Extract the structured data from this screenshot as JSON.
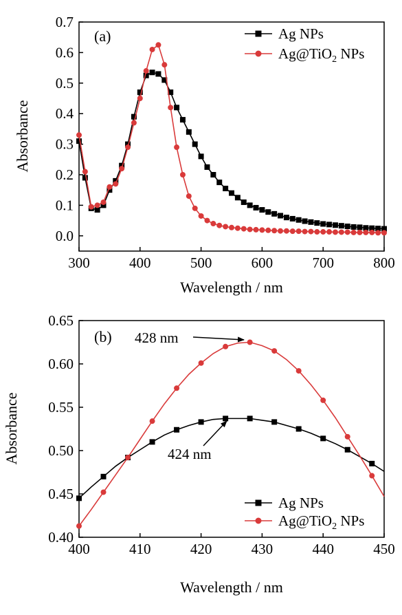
{
  "chart_data": [
    {
      "type": "line",
      "panel_label": "(a)",
      "xlabel": "Wavelength / nm",
      "ylabel": "Absorbance",
      "xlim": [
        300,
        800
      ],
      "ylim": [
        -0.05,
        0.7
      ],
      "xticks": [
        300,
        400,
        500,
        600,
        700,
        800
      ],
      "yticks": [
        0.0,
        0.1,
        0.2,
        0.3,
        0.4,
        0.5,
        0.6,
        0.7
      ],
      "legend_position": "top-right",
      "series": [
        {
          "name": "Ag NPs",
          "color": "#000000",
          "marker": "square",
          "x": [
            300,
            310,
            320,
            330,
            340,
            350,
            360,
            370,
            380,
            390,
            400,
            410,
            420,
            430,
            440,
            450,
            460,
            470,
            480,
            490,
            500,
            510,
            520,
            530,
            540,
            550,
            560,
            570,
            580,
            590,
            600,
            610,
            620,
            630,
            640,
            650,
            660,
            670,
            680,
            690,
            700,
            710,
            720,
            730,
            740,
            750,
            760,
            770,
            780,
            790,
            800
          ],
          "y": [
            0.31,
            0.19,
            0.09,
            0.085,
            0.1,
            0.15,
            0.18,
            0.23,
            0.3,
            0.39,
            0.47,
            0.525,
            0.535,
            0.53,
            0.51,
            0.47,
            0.42,
            0.38,
            0.34,
            0.3,
            0.26,
            0.225,
            0.2,
            0.175,
            0.155,
            0.14,
            0.125,
            0.11,
            0.1,
            0.092,
            0.085,
            0.078,
            0.072,
            0.066,
            0.06,
            0.056,
            0.052,
            0.048,
            0.045,
            0.042,
            0.039,
            0.037,
            0.035,
            0.033,
            0.031,
            0.029,
            0.028,
            0.026,
            0.025,
            0.024,
            0.023
          ]
        },
        {
          "name": "Ag@TiO2 NPs",
          "color": "#d93a3a",
          "marker": "circle",
          "x": [
            300,
            310,
            320,
            330,
            340,
            350,
            360,
            370,
            380,
            390,
            400,
            410,
            420,
            430,
            440,
            450,
            460,
            470,
            480,
            490,
            500,
            510,
            520,
            530,
            540,
            550,
            560,
            570,
            580,
            590,
            600,
            610,
            620,
            630,
            640,
            650,
            660,
            670,
            680,
            690,
            700,
            710,
            720,
            730,
            740,
            750,
            760,
            770,
            780,
            790,
            800
          ],
          "y": [
            0.33,
            0.21,
            0.095,
            0.1,
            0.11,
            0.16,
            0.17,
            0.22,
            0.29,
            0.37,
            0.45,
            0.54,
            0.61,
            0.625,
            0.56,
            0.42,
            0.29,
            0.2,
            0.13,
            0.09,
            0.065,
            0.05,
            0.04,
            0.034,
            0.03,
            0.027,
            0.025,
            0.023,
            0.021,
            0.02,
            0.019,
            0.018,
            0.017,
            0.016,
            0.016,
            0.015,
            0.015,
            0.014,
            0.014,
            0.013,
            0.013,
            0.013,
            0.012,
            0.012,
            0.012,
            0.011,
            0.011,
            0.011,
            0.011,
            0.01,
            0.01
          ]
        }
      ]
    },
    {
      "type": "line",
      "panel_label": "(b)",
      "xlabel": "Wavelength / nm",
      "ylabel": "Absorbance",
      "xlim": [
        400,
        450
      ],
      "ylim": [
        0.4,
        0.65
      ],
      "xticks": [
        400,
        410,
        420,
        430,
        440,
        450
      ],
      "yticks": [
        "0.40",
        "0.45",
        "0.50",
        "0.55",
        "0.60",
        "0.65"
      ],
      "legend_position": "bottom-right",
      "annotations": [
        {
          "text": "428 nm",
          "x": 428,
          "y": 0.625
        },
        {
          "text": "424 nm",
          "x": 424,
          "y": 0.537
        }
      ],
      "series": [
        {
          "name": "Ag NPs",
          "color": "#000000",
          "marker": "square",
          "x": [
            400,
            404,
            408,
            412,
            416,
            420,
            424,
            428,
            432,
            436,
            440,
            444,
            448
          ],
          "y": [
            0.445,
            0.47,
            0.492,
            0.51,
            0.524,
            0.533,
            0.537,
            0.537,
            0.533,
            0.525,
            0.514,
            0.501,
            0.485
          ],
          "curve_x": [
            400,
            402,
            404,
            406,
            408,
            410,
            412,
            414,
            416,
            418,
            420,
            422,
            424,
            426,
            428,
            430,
            432,
            434,
            436,
            438,
            440,
            442,
            444,
            446,
            448,
            450
          ],
          "curve_y": [
            0.445,
            0.458,
            0.47,
            0.482,
            0.492,
            0.501,
            0.51,
            0.518,
            0.524,
            0.529,
            0.533,
            0.536,
            0.537,
            0.537,
            0.537,
            0.535,
            0.533,
            0.529,
            0.525,
            0.52,
            0.514,
            0.508,
            0.501,
            0.493,
            0.485,
            0.476
          ]
        },
        {
          "name": "Ag@TiO2 NPs",
          "color": "#d93a3a",
          "marker": "circle",
          "x": [
            400,
            404,
            408,
            412,
            416,
            420,
            424,
            428,
            432,
            436,
            440,
            444,
            448
          ],
          "y": [
            0.413,
            0.452,
            0.492,
            0.534,
            0.572,
            0.601,
            0.62,
            0.625,
            0.615,
            0.592,
            0.558,
            0.516,
            0.471
          ],
          "curve_x": [
            400,
            402,
            404,
            406,
            408,
            410,
            412,
            414,
            416,
            418,
            420,
            422,
            424,
            426,
            428,
            430,
            432,
            434,
            436,
            438,
            440,
            442,
            444,
            446,
            448,
            450
          ],
          "curve_y": [
            0.413,
            0.432,
            0.452,
            0.472,
            0.492,
            0.513,
            0.534,
            0.554,
            0.572,
            0.588,
            0.601,
            0.612,
            0.62,
            0.624,
            0.625,
            0.621,
            0.615,
            0.605,
            0.592,
            0.576,
            0.558,
            0.538,
            0.516,
            0.494,
            0.471,
            0.447
          ]
        }
      ]
    }
  ]
}
